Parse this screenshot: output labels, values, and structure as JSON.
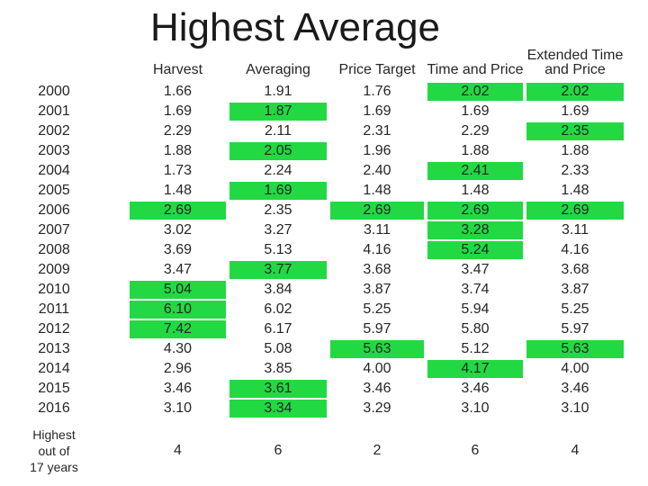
{
  "slide": {
    "title": "Highest Average",
    "background_color": "#ffffff",
    "highlight_color": "#22d943",
    "text_color": "#262626"
  },
  "table": {
    "column_headers": [
      "Harvest",
      "Averaging",
      "Price Target",
      "Time and Price",
      "Extended Time\nand Price"
    ],
    "rows": [
      {
        "year": "2000",
        "values": [
          "1.66",
          "1.91",
          "1.76",
          "2.02",
          "2.02"
        ],
        "highlight": [
          false,
          false,
          false,
          true,
          true
        ]
      },
      {
        "year": "2001",
        "values": [
          "1.69",
          "1.87",
          "1.69",
          "1.69",
          "1.69"
        ],
        "highlight": [
          false,
          true,
          false,
          false,
          false
        ]
      },
      {
        "year": "2002",
        "values": [
          "2.29",
          "2.11",
          "2.31",
          "2.29",
          "2.35"
        ],
        "highlight": [
          false,
          false,
          false,
          false,
          true
        ]
      },
      {
        "year": "2003",
        "values": [
          "1.88",
          "2.05",
          "1.96",
          "1.88",
          "1.88"
        ],
        "highlight": [
          false,
          true,
          false,
          false,
          false
        ]
      },
      {
        "year": "2004",
        "values": [
          "1.73",
          "2.24",
          "2.40",
          "2.41",
          "2.33"
        ],
        "highlight": [
          false,
          false,
          false,
          true,
          false
        ]
      },
      {
        "year": "2005",
        "values": [
          "1.48",
          "1.69",
          "1.48",
          "1.48",
          "1.48"
        ],
        "highlight": [
          false,
          true,
          false,
          false,
          false
        ]
      },
      {
        "year": "2006",
        "values": [
          "2.69",
          "2.35",
          "2.69",
          "2.69",
          "2.69"
        ],
        "highlight": [
          true,
          false,
          true,
          true,
          true
        ]
      },
      {
        "year": "2007",
        "values": [
          "3.02",
          "3.27",
          "3.11",
          "3.28",
          "3.11"
        ],
        "highlight": [
          false,
          false,
          false,
          true,
          false
        ]
      },
      {
        "year": "2008",
        "values": [
          "3.69",
          "5.13",
          "4.16",
          "5.24",
          "4.16"
        ],
        "highlight": [
          false,
          false,
          false,
          true,
          false
        ]
      },
      {
        "year": "2009",
        "values": [
          "3.47",
          "3.77",
          "3.68",
          "3.47",
          "3.68"
        ],
        "highlight": [
          false,
          true,
          false,
          false,
          false
        ]
      },
      {
        "year": "2010",
        "values": [
          "5.04",
          "3.84",
          "3.87",
          "3.74",
          "3.87"
        ],
        "highlight": [
          true,
          false,
          false,
          false,
          false
        ]
      },
      {
        "year": "2011",
        "values": [
          "6.10",
          "6.02",
          "5.25",
          "5.94",
          "5.25"
        ],
        "highlight": [
          true,
          false,
          false,
          false,
          false
        ]
      },
      {
        "year": "2012",
        "values": [
          "7.42",
          "6.17",
          "5.97",
          "5.80",
          "5.97"
        ],
        "highlight": [
          true,
          false,
          false,
          false,
          false
        ]
      },
      {
        "year": "2013",
        "values": [
          "4.30",
          "5.08",
          "5.63",
          "5.12",
          "5.63"
        ],
        "highlight": [
          false,
          false,
          true,
          false,
          true
        ]
      },
      {
        "year": "2014",
        "values": [
          "2.96",
          "3.85",
          "4.00",
          "4.17",
          "4.00"
        ],
        "highlight": [
          false,
          false,
          false,
          true,
          false
        ]
      },
      {
        "year": "2015",
        "values": [
          "3.46",
          "3.61",
          "3.46",
          "3.46",
          "3.46"
        ],
        "highlight": [
          false,
          true,
          false,
          false,
          false
        ]
      },
      {
        "year": "2016",
        "values": [
          "3.10",
          "3.34",
          "3.29",
          "3.10",
          "3.10"
        ],
        "highlight": [
          false,
          true,
          false,
          false,
          false
        ]
      }
    ],
    "summary": {
      "label": "Highest\nout of\n17 years",
      "values": [
        "4",
        "6",
        "2",
        "6",
        "4"
      ]
    }
  }
}
